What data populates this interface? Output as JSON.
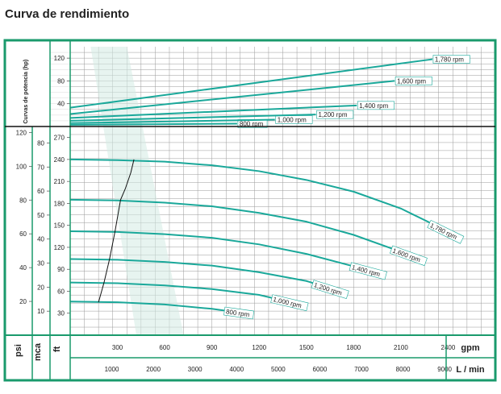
{
  "title": "Curva de rendimiento",
  "colors": {
    "frame": "#1a9a6c",
    "curve": "#1aa89a",
    "band": "#d4ebe4",
    "grid": "#9a9a9a",
    "text": "#222222"
  },
  "chart_data": [
    {
      "type": "line",
      "name": "power",
      "ylabel": "Curvas de potencia (hp)",
      "xlim": [
        0,
        2700
      ],
      "ylim": [
        0,
        140
      ],
      "yticks": [
        40,
        80,
        120
      ],
      "series": [
        {
          "name": "800 rpm",
          "x": [
            0,
            1060
          ],
          "y": [
            3,
            5
          ]
        },
        {
          "name": "1,000 rpm",
          "x": [
            0,
            1300
          ],
          "y": [
            6,
            12
          ]
        },
        {
          "name": "1,200 rpm",
          "x": [
            0,
            1560
          ],
          "y": [
            10,
            21
          ]
        },
        {
          "name": "1,400 rpm",
          "x": [
            0,
            1820
          ],
          "y": [
            15,
            37
          ]
        },
        {
          "name": "1,600 rpm",
          "x": [
            0,
            2060
          ],
          "y": [
            22,
            80
          ]
        },
        {
          "name": "1,780 rpm",
          "x": [
            0,
            2300
          ],
          "y": [
            33,
            118
          ]
        }
      ]
    },
    {
      "type": "line",
      "name": "head",
      "xlabel_gpm": "gpm",
      "xlabel_lmin": "L / min",
      "ylabel_psi": "psi",
      "ylabel_mca": "mca",
      "ylabel_ft": "ft",
      "xlim": [
        0,
        2700
      ],
      "ylim": [
        0,
        285
      ],
      "x_gpm_ticks": [
        300,
        600,
        900,
        1200,
        1500,
        1800,
        2100,
        2400
      ],
      "x_lmin_ticks": [
        1000,
        2000,
        3000,
        4000,
        5000,
        6000,
        7000,
        8000,
        9000
      ],
      "ft_ticks": [
        30,
        60,
        90,
        120,
        150,
        180,
        210,
        240,
        270
      ],
      "mca_ticks": [
        10,
        20,
        30,
        40,
        50,
        60,
        70,
        80
      ],
      "psi_ticks": [
        20,
        40,
        60,
        80,
        100,
        120
      ],
      "series": [
        {
          "name": "800 rpm",
          "x": [
            0,
            300,
            600,
            900,
            1000
          ],
          "y": [
            46,
            45,
            42,
            36,
            33
          ]
        },
        {
          "name": "1,000 rpm",
          "x": [
            0,
            300,
            600,
            900,
            1200,
            1300
          ],
          "y": [
            72,
            71,
            68,
            63,
            55,
            50
          ]
        },
        {
          "name": "1,200 rpm",
          "x": [
            0,
            300,
            600,
            900,
            1200,
            1500,
            1560
          ],
          "y": [
            104,
            103,
            100,
            95,
            86,
            74,
            70
          ]
        },
        {
          "name": "1,400 rpm",
          "x": [
            0,
            300,
            600,
            900,
            1200,
            1500,
            1800
          ],
          "y": [
            142,
            141,
            138,
            133,
            124,
            111,
            94
          ]
        },
        {
          "name": "1,600 rpm",
          "x": [
            0,
            300,
            600,
            900,
            1200,
            1500,
            1800,
            2060
          ],
          "y": [
            185,
            184,
            181,
            176,
            167,
            155,
            137,
            117
          ]
        },
        {
          "name": "1,780 rpm",
          "x": [
            0,
            300,
            600,
            900,
            1200,
            1500,
            1800,
            2100,
            2300
          ],
          "y": [
            240,
            239,
            237,
            232,
            224,
            212,
            196,
            173,
            152
          ]
        }
      ],
      "efficiency_line": {
        "x": [
          180,
          215,
          250,
          285,
          320,
          350,
          385,
          405
        ],
        "y": [
          45,
          72,
          104,
          142,
          185,
          200,
          222,
          240
        ]
      }
    }
  ]
}
